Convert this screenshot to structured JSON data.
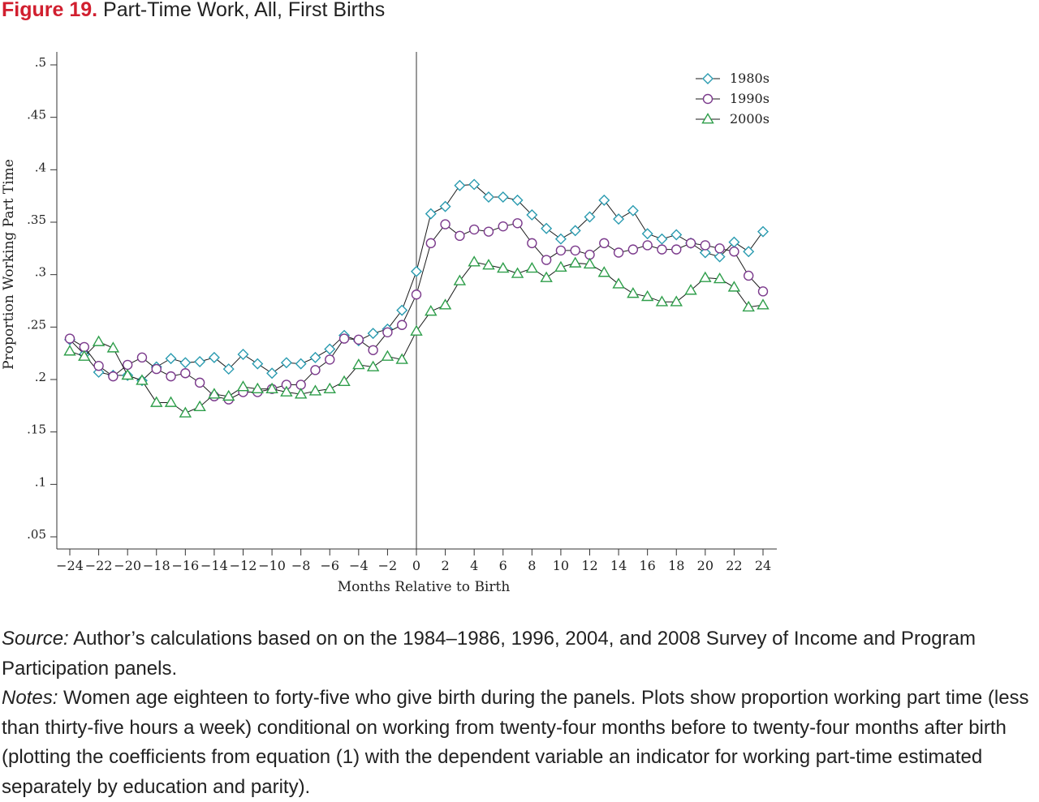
{
  "figure": {
    "label": "Figure 19.",
    "title": "Part-Time Work, All, First Births"
  },
  "caption": {
    "source_label": "Source:",
    "source_text": "Author’s calculations based on on the 1984–1986, 1996, 2004, and 2008 Survey of Income and Program Participation panels.",
    "notes_label": "Notes:",
    "notes_text": "Women age eighteen to forty-five who give birth during the panels. Plots show proportion working part time (less than thirty-five hours a week) conditional on working from twenty-four months before to twenty-four months after birth (plotting the coefficients from equation (1) with the dependent variable an indicator for working part-time estimated separately by education and parity)."
  },
  "chart_data": {
    "type": "line",
    "xlabel": "Months Relative to Birth",
    "ylabel": "Proportion Working Part Time",
    "xlim": [
      -24,
      24
    ],
    "ylim": [
      0.05,
      0.5
    ],
    "xticks": [
      -24,
      -22,
      -20,
      -18,
      -16,
      -14,
      -12,
      -10,
      -8,
      -6,
      -4,
      -2,
      0,
      2,
      4,
      6,
      8,
      10,
      12,
      14,
      16,
      18,
      20,
      22,
      24
    ],
    "xtick_labels": [
      "−24",
      "−22",
      "−20",
      "−18",
      "−16",
      "−14",
      "−12",
      "−10",
      "−8",
      "−6",
      "−4",
      "−2",
      "0",
      "2",
      "4",
      "6",
      "8",
      "10",
      "12",
      "14",
      "16",
      "18",
      "20",
      "22",
      "24"
    ],
    "yticks": [
      0.05,
      0.1,
      0.15,
      0.2,
      0.25,
      0.3,
      0.35,
      0.4,
      0.45,
      0.5
    ],
    "ytick_labels": [
      ".05",
      ".1",
      ".15",
      ".2",
      ".25",
      ".3",
      ".35",
      ".4",
      ".45",
      ".5"
    ],
    "vline_x": 0,
    "legend_position": "top-right",
    "grid": false,
    "x": [
      -24,
      -23,
      -22,
      -21,
      -20,
      -19,
      -18,
      -17,
      -16,
      -15,
      -14,
      -13,
      -12,
      -11,
      -10,
      -9,
      -8,
      -7,
      -6,
      -5,
      -4,
      -3,
      -2,
      -1,
      0,
      1,
      2,
      3,
      4,
      5,
      6,
      7,
      8,
      9,
      10,
      11,
      12,
      13,
      14,
      15,
      16,
      17,
      18,
      19,
      20,
      21,
      22,
      23,
      24
    ],
    "series": [
      {
        "name": "1980s",
        "marker": "diamond",
        "color": "#2a9bb0",
        "values": [
          0.238,
          0.224,
          0.207,
          0.204,
          0.204,
          0.199,
          0.212,
          0.22,
          0.216,
          0.217,
          0.221,
          0.21,
          0.224,
          0.215,
          0.206,
          0.216,
          0.215,
          0.221,
          0.229,
          0.242,
          0.237,
          0.244,
          0.248,
          0.266,
          0.303,
          0.358,
          0.365,
          0.385,
          0.386,
          0.374,
          0.374,
          0.371,
          0.357,
          0.344,
          0.334,
          0.342,
          0.355,
          0.371,
          0.353,
          0.361,
          0.339,
          0.334,
          0.338,
          0.33,
          0.321,
          0.317,
          0.331,
          0.322,
          0.341
        ]
      },
      {
        "name": "1990s",
        "marker": "circle",
        "color": "#7b3a8c",
        "values": [
          0.239,
          0.231,
          0.213,
          0.203,
          0.214,
          0.221,
          0.21,
          0.203,
          0.206,
          0.197,
          0.184,
          0.181,
          0.188,
          0.188,
          0.191,
          0.195,
          0.195,
          0.209,
          0.219,
          0.239,
          0.238,
          0.228,
          0.245,
          0.252,
          0.281,
          0.33,
          0.348,
          0.337,
          0.343,
          0.341,
          0.346,
          0.349,
          0.33,
          0.314,
          0.323,
          0.323,
          0.319,
          0.33,
          0.321,
          0.324,
          0.328,
          0.324,
          0.324,
          0.33,
          0.328,
          0.325,
          0.322,
          0.299,
          0.284
        ]
      },
      {
        "name": "2000s",
        "marker": "triangle",
        "color": "#2e9e4a",
        "values": [
          0.227,
          0.222,
          0.236,
          0.23,
          0.204,
          0.199,
          0.178,
          0.178,
          0.168,
          0.174,
          0.186,
          0.184,
          0.193,
          0.191,
          0.191,
          0.188,
          0.186,
          0.189,
          0.191,
          0.198,
          0.214,
          0.212,
          0.222,
          0.219,
          0.246,
          0.265,
          0.271,
          0.294,
          0.312,
          0.309,
          0.306,
          0.301,
          0.306,
          0.297,
          0.307,
          0.311,
          0.31,
          0.302,
          0.291,
          0.282,
          0.279,
          0.274,
          0.274,
          0.285,
          0.297,
          0.296,
          0.288,
          0.269,
          0.271
        ]
      }
    ]
  }
}
